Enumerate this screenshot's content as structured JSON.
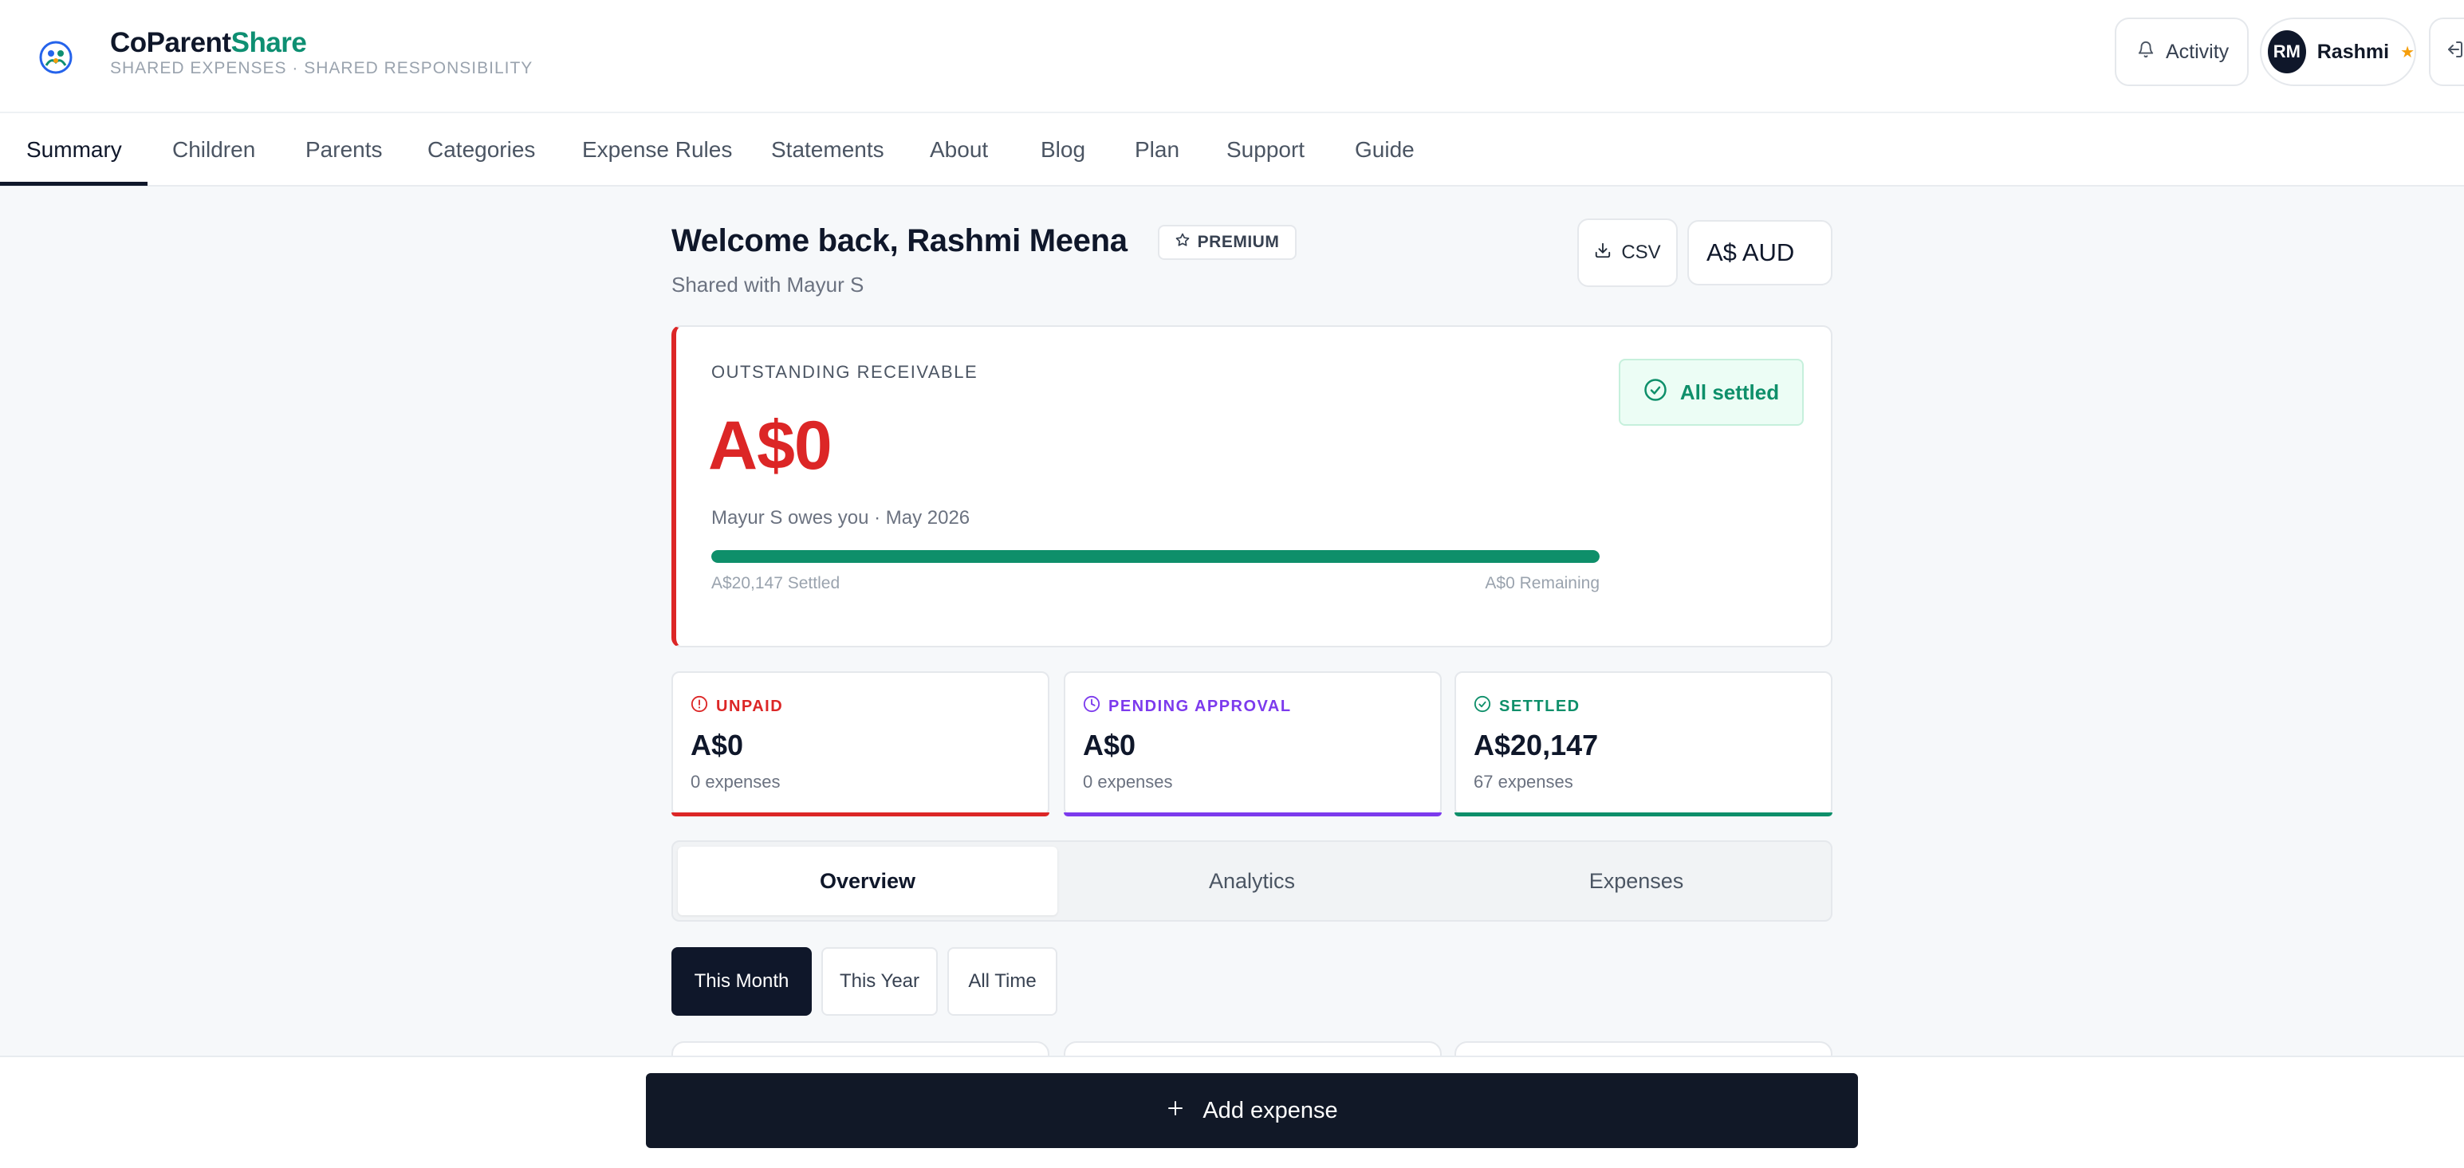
{
  "header": {
    "brand_main": "CoParent",
    "brand_accent": "Share",
    "tagline": "SHARED EXPENSES · SHARED RESPONSIBILITY",
    "activity_label": "Activity",
    "user_initials": "RM",
    "user_name": "Rashmi",
    "user_star": "★"
  },
  "nav": {
    "items": [
      "Summary",
      "Children",
      "Parents",
      "Categories",
      "Expense Rules",
      "Statements",
      "About",
      "Blog",
      "Plan",
      "Support",
      "Guide"
    ],
    "active": "Summary"
  },
  "main": {
    "welcome": "Welcome back, Rashmi Meena",
    "badge": "PREMIUM",
    "shared_with": "Shared with Mayur S",
    "csv_label": "CSV",
    "currency": "A$ AUD"
  },
  "outstanding": {
    "label": "OUTSTANDING RECEIVABLE",
    "amount": "A$0",
    "subtitle": "Mayur S owes you · May 2026",
    "settled_progress": 1.0,
    "settled_text": "A$20,147 Settled",
    "remaining_text": "A$0 Remaining",
    "status": "All settled"
  },
  "stats": [
    {
      "label": "UNPAID",
      "value": "A$0",
      "sub": "0 expenses",
      "color": "#dc2626"
    },
    {
      "label": "PENDING APPROVAL",
      "value": "A$0",
      "sub": "0 expenses",
      "color": "#7c3aed"
    },
    {
      "label": "SETTLED",
      "value": "A$20,147",
      "sub": "67 expenses",
      "color": "#0e8f6a"
    }
  ],
  "tabs": [
    "Overview",
    "Analytics",
    "Expenses"
  ],
  "active_tab": "Overview",
  "periods": [
    "This Month",
    "This Year",
    "All Time"
  ],
  "active_period": "This Month",
  "add_button": "Add expense",
  "icons": {
    "activity": "bell-icon",
    "logout": "logout-icon",
    "badge": "star-icon",
    "csv": "download-icon",
    "settled": "check-circle-icon",
    "unpaid": "alert-circle-icon",
    "pending": "clock-icon",
    "add": "plus-icon"
  }
}
